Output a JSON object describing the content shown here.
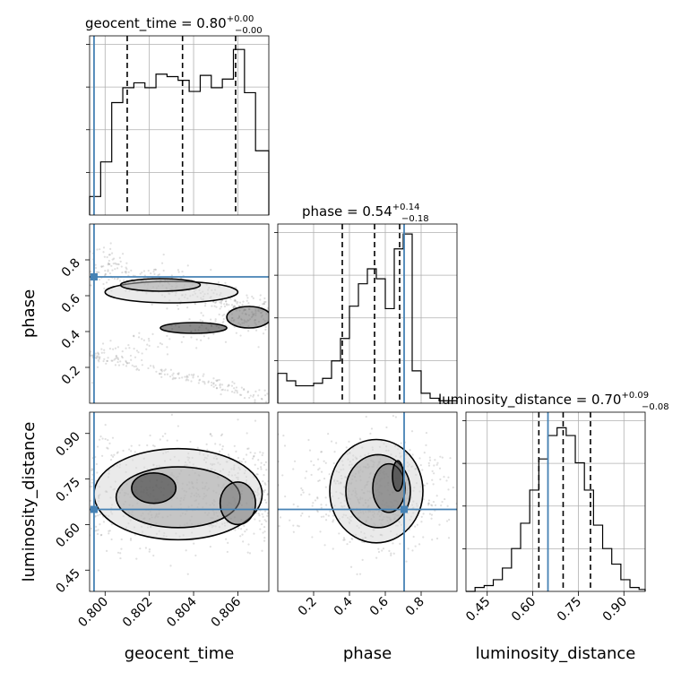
{
  "chart_data": {
    "type": "corner",
    "parameters": [
      "geocent_time",
      "phase",
      "luminosity_distance"
    ],
    "truths": {
      "geocent_time": 0.7995,
      "phase": 0.705,
      "luminosity_distance": 0.65
    },
    "diagonal": [
      {
        "parameter": "geocent_time",
        "title_prefix": "geocent_time = 0.80",
        "plus": "+0.00",
        "minus": "−0.00",
        "range": [
          0.7993,
          0.8074
        ],
        "quantiles": [
          0.801,
          0.8035,
          0.8059
        ],
        "bin_edges": [
          0.7993,
          0.7998,
          0.8003,
          0.8008,
          0.8013,
          0.8018,
          0.8023,
          0.8028,
          0.8033,
          0.8038,
          0.8043,
          0.8048,
          0.8053,
          0.8058,
          0.8063,
          0.8068,
          0.8074
        ],
        "counts": [
          0.15,
          0.43,
          0.91,
          1.03,
          1.07,
          1.03,
          1.14,
          1.12,
          1.09,
          1.0,
          1.13,
          1.03,
          1.1,
          1.34,
          0.99,
          0.52
        ],
        "ymax": 1.45
      },
      {
        "parameter": "phase",
        "title_prefix": "phase = 0.54",
        "plus": "+0.14",
        "minus": "−0.18",
        "range": [
          0.0,
          1.0
        ],
        "quantiles": [
          0.36,
          0.54,
          0.68
        ],
        "bin_edges": [
          0.0,
          0.05,
          0.1,
          0.15,
          0.2,
          0.25,
          0.3,
          0.35,
          0.4,
          0.45,
          0.5,
          0.55,
          0.6,
          0.65,
          0.7,
          0.75,
          0.8,
          0.85,
          0.9,
          0.95,
          1.0
        ],
        "counts": [
          0.12,
          0.09,
          0.07,
          0.07,
          0.08,
          0.1,
          0.17,
          0.26,
          0.39,
          0.48,
          0.54,
          0.5,
          0.38,
          0.62,
          0.68,
          0.13,
          0.04,
          0.02,
          0.01,
          0.01
        ],
        "ymax": 0.72
      },
      {
        "parameter": "luminosity_distance",
        "title_prefix": "luminosity_distance = 0.70",
        "plus": "+0.09",
        "minus": "−0.08",
        "range": [
          0.38,
          0.97
        ],
        "quantiles": [
          0.62,
          0.7,
          0.79
        ],
        "bin_edges": [
          0.38,
          0.41,
          0.44,
          0.47,
          0.5,
          0.53,
          0.56,
          0.59,
          0.62,
          0.65,
          0.68,
          0.71,
          0.74,
          0.77,
          0.8,
          0.83,
          0.86,
          0.89,
          0.92,
          0.95,
          0.97
        ],
        "counts": [
          0.0,
          0.02,
          0.03,
          0.06,
          0.12,
          0.22,
          0.35,
          0.52,
          0.68,
          0.8,
          0.84,
          0.8,
          0.66,
          0.52,
          0.34,
          0.22,
          0.14,
          0.06,
          0.02,
          0.01
        ],
        "ymax": 0.92
      }
    ],
    "pairs": [
      {
        "x": "geocent_time",
        "y": "phase",
        "xrange": [
          0.7993,
          0.8074
        ],
        "yrange": [
          0.0,
          1.0
        ]
      },
      {
        "x": "geocent_time",
        "y": "luminosity_distance",
        "xrange": [
          0.7993,
          0.8074
        ],
        "yrange": [
          0.38,
          0.97
        ]
      },
      {
        "x": "phase",
        "y": "luminosity_distance",
        "xrange": [
          0.0,
          1.0
        ],
        "yrange": [
          0.38,
          0.97
        ]
      }
    ],
    "ticks": {
      "geocent_time": [
        "0.800",
        "0.802",
        "0.804",
        "0.806"
      ],
      "phase": [
        "0.2",
        "0.4",
        "0.6",
        "0.8"
      ],
      "luminosity_distance": [
        "0.45",
        "0.60",
        "0.75",
        "0.90"
      ]
    },
    "axis_labels": {
      "x": [
        "geocent_time",
        "phase",
        "luminosity_distance"
      ],
      "y": [
        "phase",
        "luminosity_distance"
      ]
    }
  }
}
